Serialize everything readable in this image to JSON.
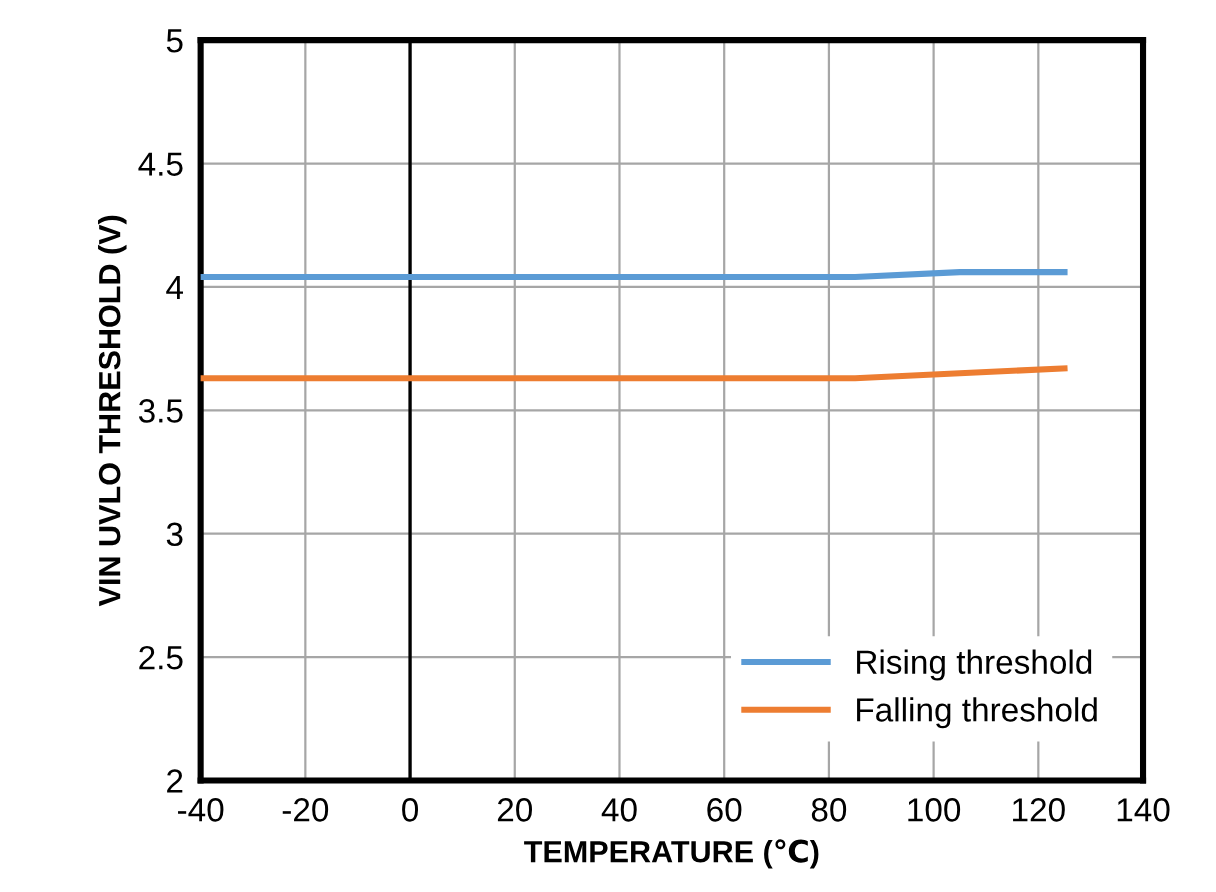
{
  "chart_data": {
    "type": "line",
    "xlabel": "TEMPERATURE (℃)",
    "ylabel": "VIN UVLO THRESHOLD (V)",
    "x": [
      -40,
      -20,
      0,
      20,
      40,
      60,
      85,
      105,
      125
    ],
    "series": [
      {
        "name": "Rising threshold",
        "color": "#5b9bd5",
        "values": [
          4.04,
          4.04,
          4.04,
          4.04,
          4.04,
          4.04,
          4.04,
          4.06,
          4.06
        ]
      },
      {
        "name": "Falling threshold",
        "color": "#ed7d31",
        "values": [
          3.63,
          3.63,
          3.63,
          3.63,
          3.63,
          3.63,
          3.63,
          3.65,
          3.67
        ]
      }
    ],
    "xlim": [
      -40,
      140
    ],
    "xticks": [
      -40,
      -20,
      0,
      20,
      40,
      60,
      80,
      100,
      120,
      140
    ],
    "ylim": [
      2,
      5
    ],
    "yticks": [
      2,
      2.5,
      3,
      3.5,
      4,
      4.5,
      5
    ],
    "ref_lines": [
      {
        "axis": "x",
        "value": 0,
        "color": "#000000"
      }
    ],
    "grid": true,
    "legend": "bottom right",
    "marker": "none",
    "line_style": "solid"
  }
}
